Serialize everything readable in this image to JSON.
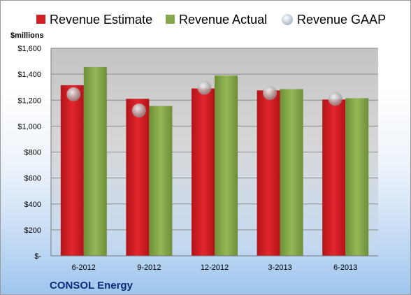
{
  "chart_data": {
    "type": "bar",
    "company": "CONSOL Energy",
    "ylabel": "$millions",
    "ylim": [
      0,
      1600
    ],
    "yticks": [
      0,
      200,
      400,
      600,
      800,
      1000,
      1200,
      1400,
      1600
    ],
    "ytick_labels": [
      "$-",
      "$200",
      "$400",
      "$600",
      "$800",
      "$1,000",
      "$1,200",
      "$1,400",
      "$1,600"
    ],
    "categories": [
      "6-2012",
      "9-2012",
      "12-2012",
      "3-2013",
      "6-2013"
    ],
    "series": [
      {
        "name": "Revenue Estimate",
        "kind": "bar",
        "color": "#d01f25",
        "values": [
          1315,
          1210,
          1290,
          1275,
          1205
        ]
      },
      {
        "name": "Revenue Actual",
        "kind": "bar",
        "color": "#86a84a",
        "values": [
          1455,
          1155,
          1390,
          1285,
          1215
        ]
      },
      {
        "name": "Revenue GAAP",
        "kind": "marker",
        "color": "#c8c8c8",
        "values": [
          1245,
          1120,
          1295,
          1255,
          1210
        ]
      }
    ],
    "grid": true,
    "legend_position": "top"
  }
}
